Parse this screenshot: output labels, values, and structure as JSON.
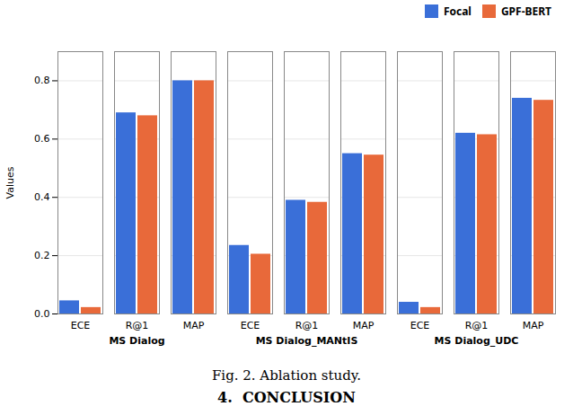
{
  "chart_data": {
    "type": "bar",
    "categories": [
      "ECE",
      "R@1",
      "MAP",
      "ECE",
      "R@1",
      "MAP",
      "ECE",
      "R@1",
      "MAP"
    ],
    "groups": [
      "MS Dialog",
      "MS Dialog_MANtIS",
      "MS Dialog_UDC"
    ],
    "series": [
      {
        "name": "Focal",
        "color": "#3a6fd8",
        "values": [
          0.045,
          0.69,
          0.8,
          0.235,
          0.39,
          0.55,
          0.04,
          0.62,
          0.74
        ]
      },
      {
        "name": "GPF-BERT",
        "color": "#e8693a",
        "values": [
          0.022,
          0.68,
          0.8,
          0.205,
          0.383,
          0.545,
          0.022,
          0.615,
          0.733
        ]
      }
    ],
    "ylabel": "Values",
    "ylim": [
      0,
      0.9
    ],
    "yticks": [
      0,
      0.2,
      0.4,
      0.6,
      0.8
    ],
    "grid": true,
    "legend": "upper right",
    "caption": "Fig. 2. Ablation study.",
    "footer": "4.  CONCLUSION"
  }
}
